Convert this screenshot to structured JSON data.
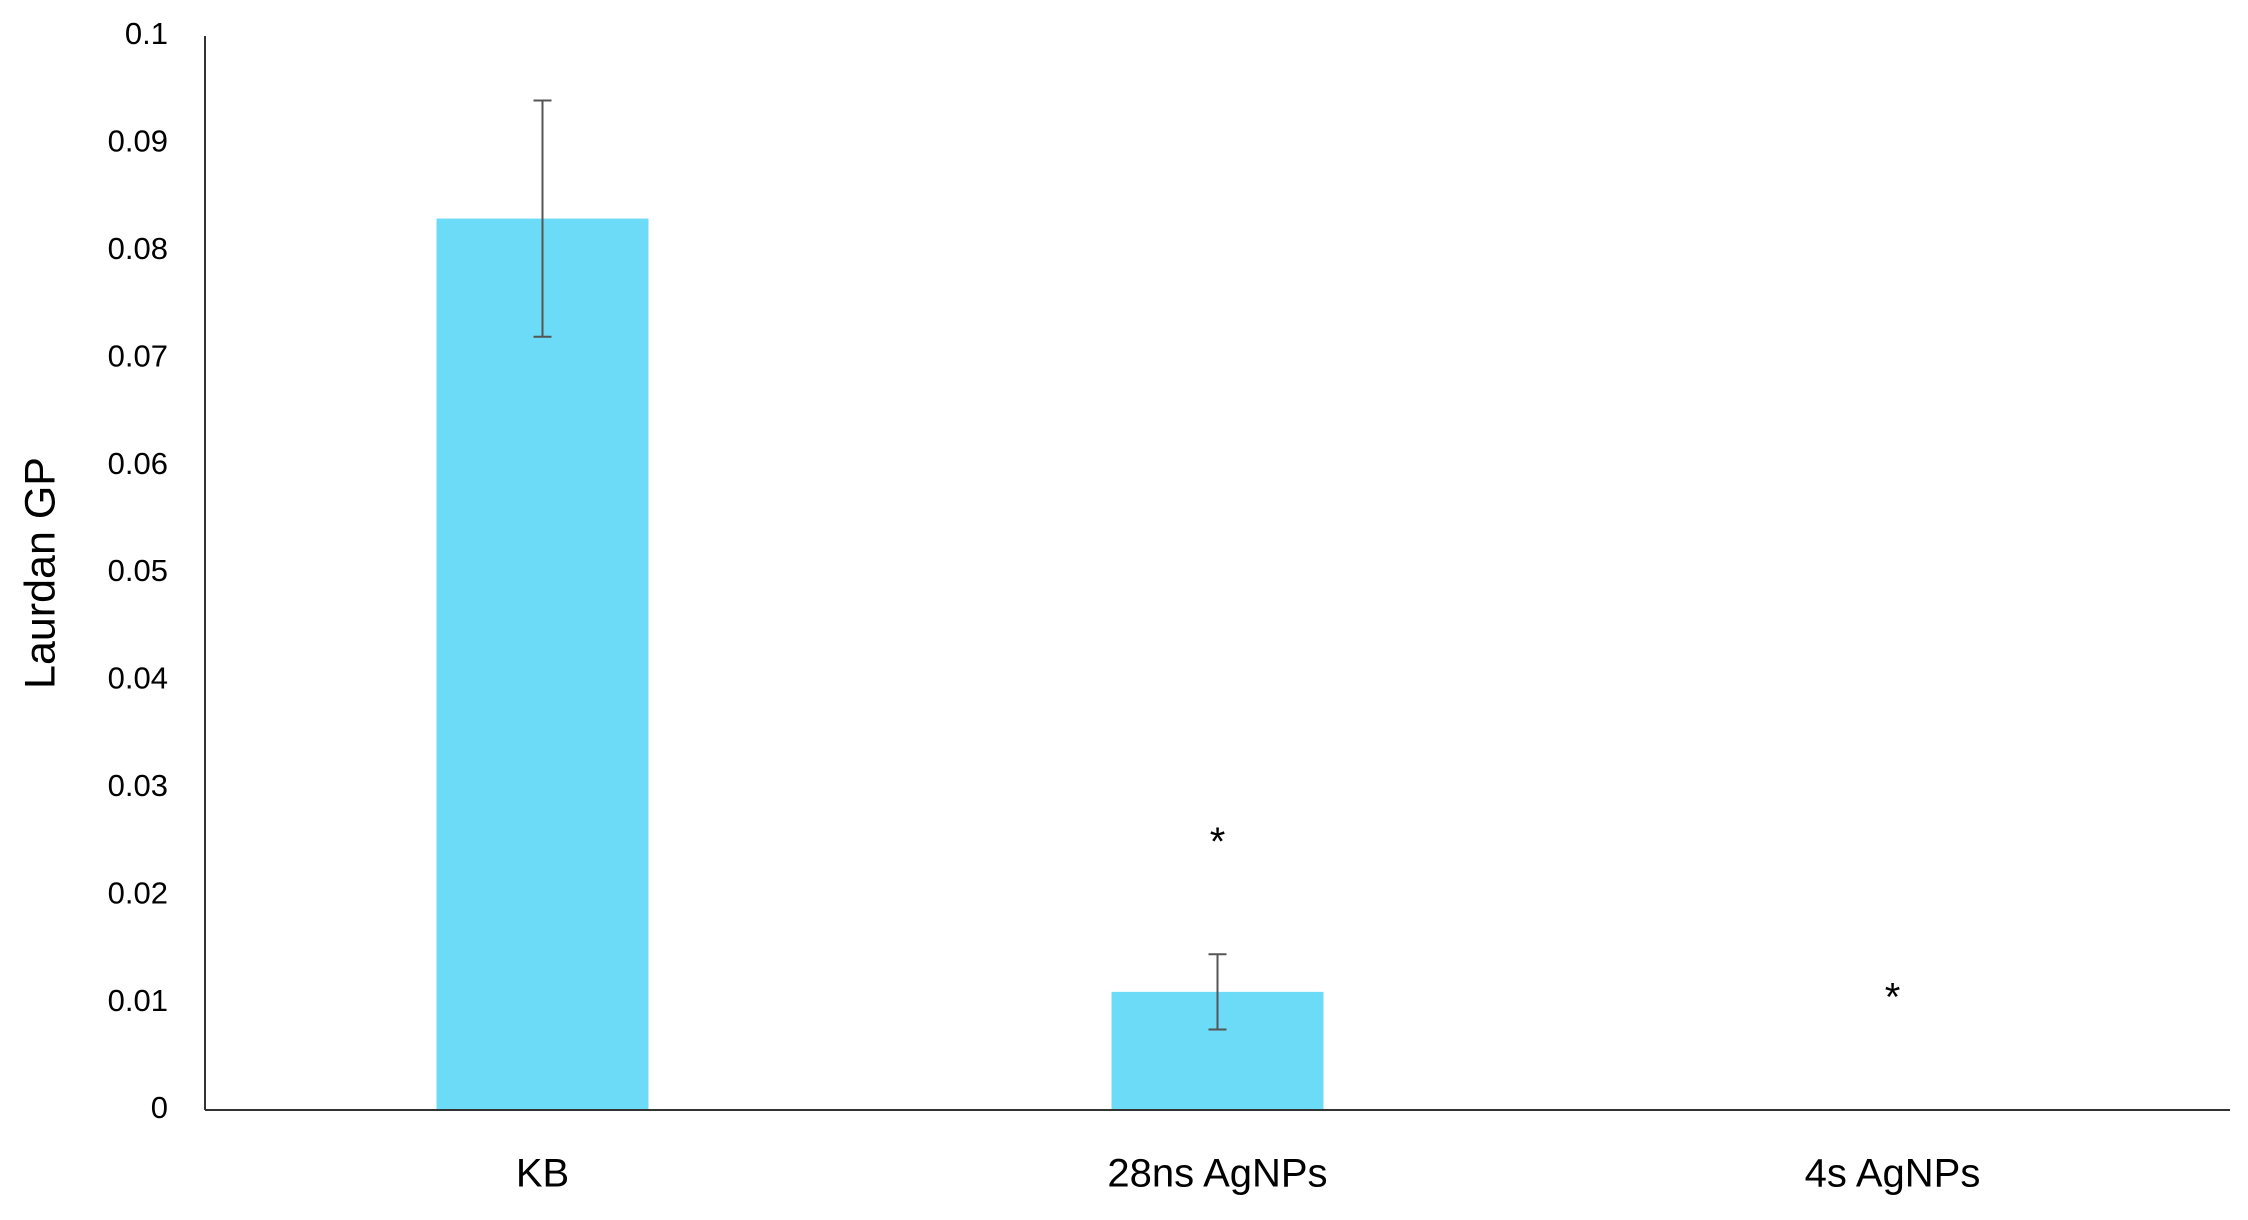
{
  "chart_data": {
    "type": "bar",
    "y_label": "Laurdan GP",
    "categories": [
      "KB",
      "28ns AgNPs",
      "4s AgNPs"
    ],
    "values": [
      0.083,
      0.011,
      0
    ],
    "errors": [
      0.011,
      0.0035,
      0
    ],
    "significance": [
      null,
      "*",
      "*"
    ],
    "color": "#6cdbf7",
    "ylim": [
      0,
      0.1
    ],
    "yticks": [
      0,
      0.01,
      0.02,
      0.03,
      0.04,
      0.05,
      0.06,
      0.07,
      0.08,
      0.09,
      0.1
    ],
    "grid": false
  }
}
